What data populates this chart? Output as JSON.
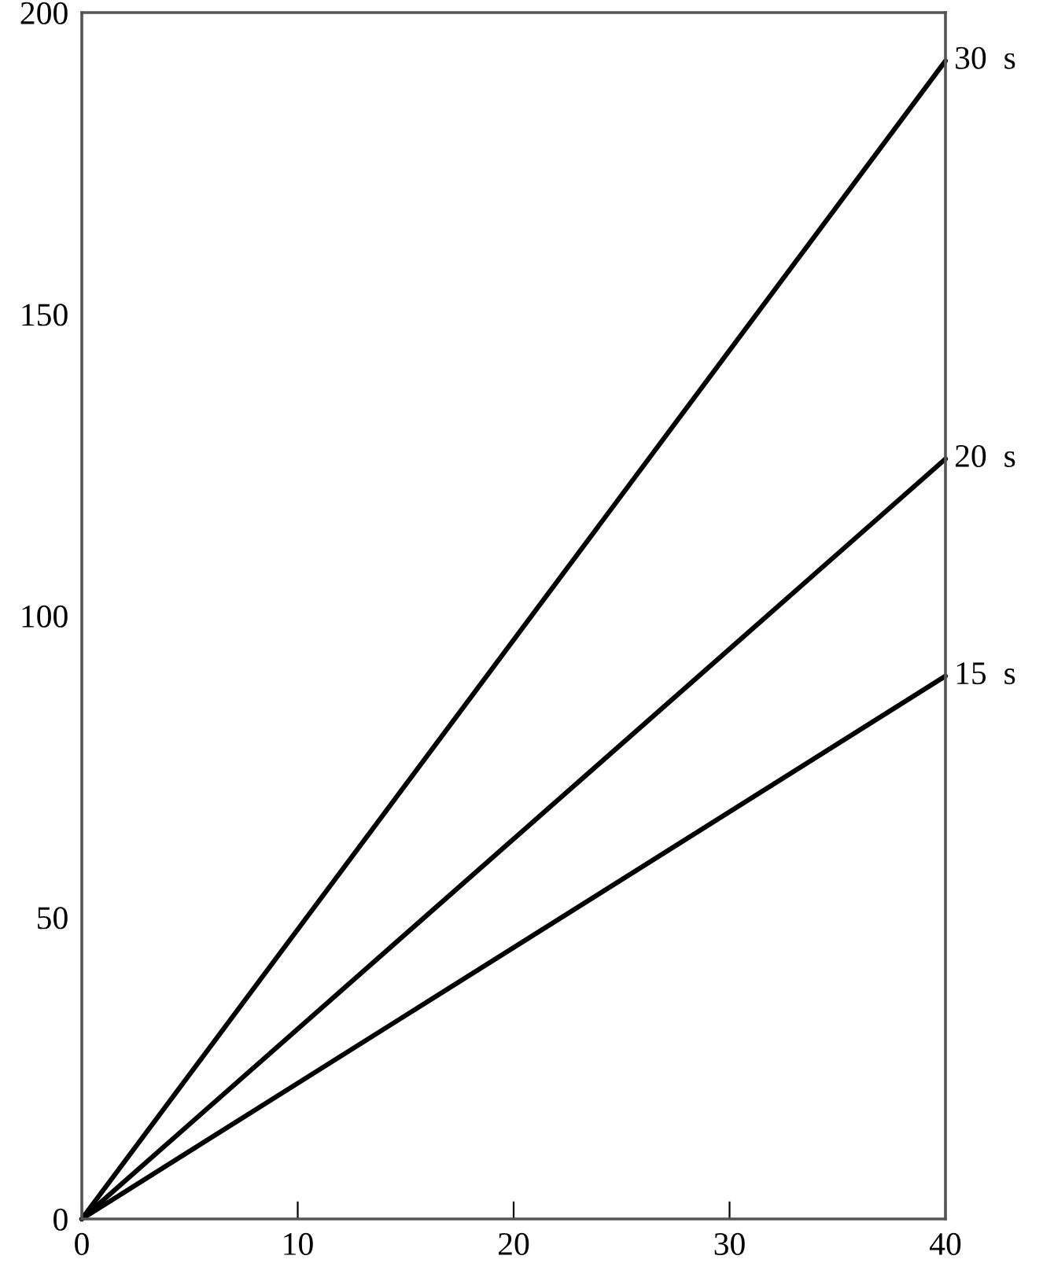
{
  "chart_data": {
    "type": "line",
    "x": [
      0,
      40
    ],
    "series": [
      {
        "name": "30  s",
        "color": "#000000",
        "values": [
          0,
          192
        ]
      },
      {
        "name": "20  s",
        "color": "#000000",
        "values": [
          0,
          126
        ]
      },
      {
        "name": "15  s",
        "color": "#000000",
        "values": [
          0,
          90
        ]
      }
    ],
    "xlim": [
      0,
      40
    ],
    "ylim": [
      0,
      200
    ],
    "xticks": [
      0,
      10,
      20,
      30,
      40
    ],
    "yticks": [
      0,
      50,
      100,
      150,
      200
    ],
    "grid": false,
    "legend": false,
    "marker": "none",
    "line_style": "solid"
  }
}
